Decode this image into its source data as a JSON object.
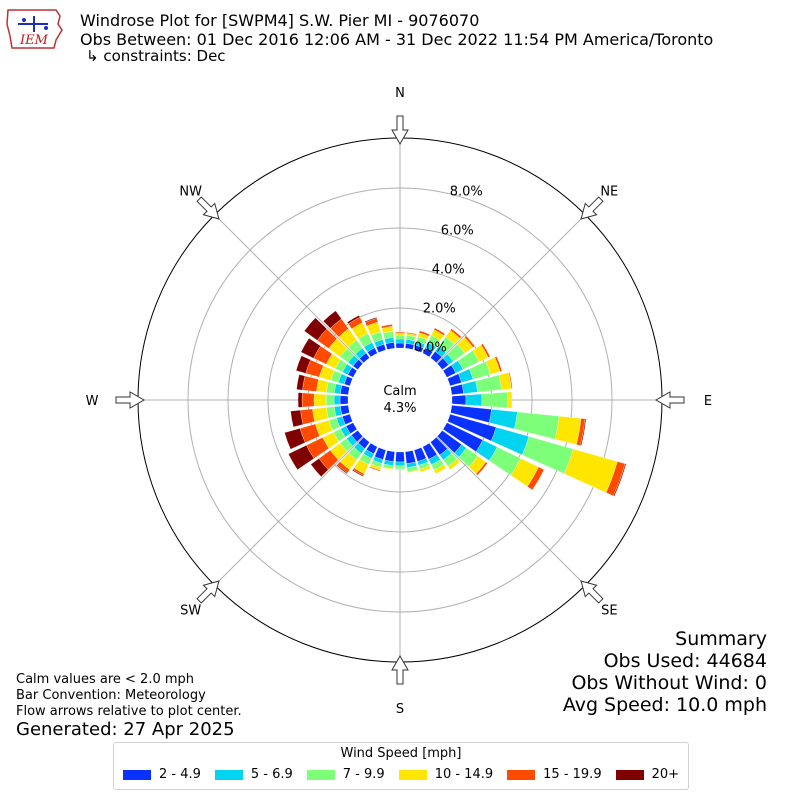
{
  "header": {
    "title_line1": "Windrose Plot for [SWPM4] S.W. Pier  MI - 9076070",
    "title_line2": "Obs Between: 01 Dec 2016 12:06 AM - 31 Dec 2022 11:54 PM America/Toronto",
    "title_line3": "↳ constraints: Dec",
    "logo_text": "IEM"
  },
  "footer": {
    "note1": "Calm values are < 2.0 mph",
    "note2": "Bar Convention: Meteorology",
    "note3": "Flow arrows relative to plot center.",
    "generated": "Generated: 27 Apr 2025"
  },
  "summary": {
    "title": "Summary",
    "obs_used": "Obs Used: 44684",
    "obs_without_wind": "Obs Without Wind: 0",
    "avg_speed": "Avg Speed: 10.0 mph"
  },
  "center": {
    "label": "Calm",
    "value": "4.3%"
  },
  "chart_data": {
    "type": "windrose",
    "rlim": [
      0,
      10.5
    ],
    "radial_ticks": [
      0,
      2,
      4,
      6,
      8
    ],
    "radial_tick_labels": [
      "0.0%",
      "2.0%",
      "4.0%",
      "6.0%",
      "8.0%"
    ],
    "calm_percent": 4.3,
    "direction_labels": [
      {
        "label": "N",
        "deg": 0
      },
      {
        "label": "NE",
        "deg": 45
      },
      {
        "label": "E",
        "deg": 90
      },
      {
        "label": "SE",
        "deg": 135
      },
      {
        "label": "S",
        "deg": 180
      },
      {
        "label": "SW",
        "deg": 225
      },
      {
        "label": "W",
        "deg": 270
      },
      {
        "label": "NW",
        "deg": 315
      }
    ],
    "legend_title": "Wind Speed [mph]",
    "bins": [
      {
        "name": "2 - 4.9",
        "color": "#0a32ff"
      },
      {
        "name": "5 - 6.9",
        "color": "#00d4f0"
      },
      {
        "name": "7 - 9.9",
        "color": "#7dff7a"
      },
      {
        "name": "10 - 14.9",
        "color": "#ffe600"
      },
      {
        "name": "15 - 19.9",
        "color": "#ff4a00"
      },
      {
        "name": "20+",
        "color": "#800000"
      }
    ],
    "directions": [
      0,
      10,
      20,
      30,
      40,
      50,
      60,
      70,
      80,
      90,
      100,
      110,
      120,
      130,
      140,
      150,
      160,
      170,
      180,
      190,
      200,
      210,
      220,
      230,
      240,
      250,
      260,
      270,
      280,
      290,
      300,
      310,
      320,
      330,
      340,
      350
    ],
    "values": [
      [
        0.25,
        0.2,
        0.2,
        0.1,
        0.05,
        0.0
      ],
      [
        0.25,
        0.2,
        0.2,
        0.1,
        0.05,
        0.0
      ],
      [
        0.25,
        0.2,
        0.25,
        0.2,
        0.1,
        0.0
      ],
      [
        0.3,
        0.3,
        0.4,
        0.3,
        0.1,
        0.0
      ],
      [
        0.4,
        0.3,
        0.6,
        0.4,
        0.1,
        0.0
      ],
      [
        0.4,
        0.3,
        0.7,
        0.5,
        0.1,
        0.0
      ],
      [
        0.5,
        0.4,
        0.9,
        0.5,
        0.1,
        0.0
      ],
      [
        0.6,
        0.6,
        0.9,
        0.5,
        0.1,
        0.0
      ],
      [
        0.6,
        0.7,
        1.2,
        0.5,
        0.05,
        0.0
      ],
      [
        0.7,
        0.8,
        1.3,
        0.2,
        0.0,
        0.0
      ],
      [
        2.0,
        1.3,
        2.1,
        1.1,
        0.2,
        0.05
      ],
      [
        2.4,
        1.7,
        2.3,
        2.3,
        0.4,
        0.05
      ],
      [
        2.0,
        0.8,
        1.3,
        1.0,
        0.3,
        0.0
      ],
      [
        1.2,
        0.3,
        0.7,
        0.5,
        0.1,
        0.0
      ],
      [
        0.8,
        0.3,
        0.4,
        0.2,
        0.0,
        0.0
      ],
      [
        0.7,
        0.3,
        0.3,
        0.2,
        0.0,
        0.0
      ],
      [
        0.6,
        0.2,
        0.2,
        0.15,
        0.0,
        0.0
      ],
      [
        0.6,
        0.2,
        0.2,
        0.05,
        0.0,
        0.0
      ],
      [
        0.5,
        0.2,
        0.15,
        0.05,
        0.0,
        0.0
      ],
      [
        0.5,
        0.2,
        0.15,
        0.05,
        0.0,
        0.0
      ],
      [
        0.5,
        0.2,
        0.2,
        0.15,
        0.05,
        0.0
      ],
      [
        0.4,
        0.25,
        0.35,
        0.5,
        0.1,
        0.05
      ],
      [
        0.4,
        0.3,
        0.4,
        0.6,
        0.2,
        0.05
      ],
      [
        0.4,
        0.3,
        0.4,
        0.6,
        0.7,
        0.5
      ],
      [
        0.4,
        0.3,
        0.4,
        0.6,
        0.9,
        1.0
      ],
      [
        0.4,
        0.3,
        0.4,
        0.7,
        0.8,
        0.8
      ],
      [
        0.4,
        0.3,
        0.4,
        0.7,
        0.6,
        0.5
      ],
      [
        0.4,
        0.3,
        0.4,
        0.6,
        0.6,
        0.2
      ],
      [
        0.4,
        0.3,
        0.4,
        0.5,
        0.7,
        0.3
      ],
      [
        0.3,
        0.3,
        0.4,
        0.6,
        0.7,
        0.5
      ],
      [
        0.3,
        0.3,
        0.4,
        0.5,
        0.7,
        0.7
      ],
      [
        0.3,
        0.3,
        0.5,
        0.7,
        0.7,
        0.8
      ],
      [
        0.3,
        0.3,
        0.5,
        0.7,
        0.6,
        0.5
      ],
      [
        0.3,
        0.3,
        0.5,
        0.6,
        0.3,
        0.1
      ],
      [
        0.3,
        0.25,
        0.4,
        0.5,
        0.2,
        0.05
      ],
      [
        0.3,
        0.25,
        0.3,
        0.25,
        0.1,
        0.0
      ]
    ]
  }
}
